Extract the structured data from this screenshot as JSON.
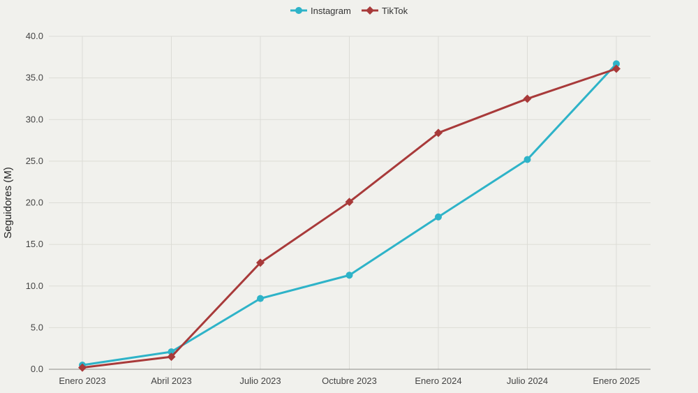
{
  "chart_data": {
    "type": "line",
    "categories": [
      "Enero 2023",
      "Abril 2023",
      "Julio 2023",
      "Octubre 2023",
      "Enero 2024",
      "Julio 2024",
      "Enero 2025"
    ],
    "series": [
      {
        "name": "Instagram",
        "color": "#2eb3c8",
        "marker": "circle",
        "values": [
          0.5,
          2.1,
          8.5,
          11.3,
          18.3,
          25.2,
          36.7
        ]
      },
      {
        "name": "TikTok",
        "color": "#a83a3a",
        "marker": "diamond",
        "values": [
          0.2,
          1.5,
          12.8,
          20.1,
          28.4,
          32.5,
          36.1
        ]
      }
    ],
    "title": "",
    "xlabel": "",
    "ylabel": "Seguidores (M)",
    "ylim": [
      0,
      40
    ],
    "yticks": [
      "0.0",
      "5.0",
      "10.0",
      "15.0",
      "20.0",
      "25.0",
      "30.0",
      "35.0",
      "40.0"
    ],
    "grid": true,
    "legend": "top-center"
  }
}
